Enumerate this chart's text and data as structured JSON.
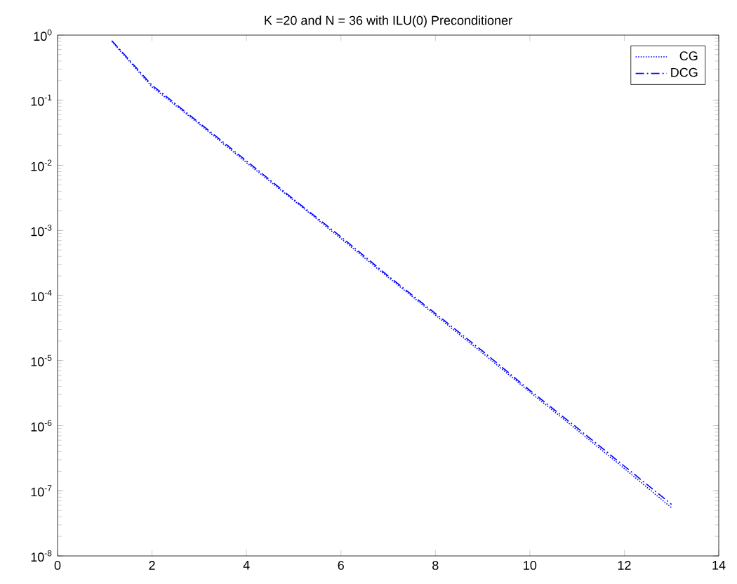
{
  "chart_data": {
    "type": "line",
    "title": "K =20 and N = 36 with ILU(0) Preconditioner",
    "log": "y",
    "legend": "top right",
    "grid": false,
    "marker": "none",
    "x": [
      1.15,
      2,
      3,
      4,
      5,
      6,
      7,
      8,
      9,
      10,
      11,
      12,
      13
    ],
    "series": [
      {
        "name": "CG",
        "color": "#0000ff",
        "line_style": "dotted",
        "values": [
          0.8,
          0.16,
          0.043,
          0.011,
          0.0029,
          0.00075,
          0.00019,
          5e-05,
          1.3e-05,
          3.3e-06,
          8.6e-07,
          2.2e-07,
          5.5e-08
        ]
      },
      {
        "name": "DCG",
        "color": "#0000ff",
        "line_style": "dashdot",
        "values": [
          0.82,
          0.17,
          0.045,
          0.0117,
          0.003,
          0.0008,
          0.0002,
          5.3e-05,
          1.4e-05,
          3.5e-06,
          9.3e-07,
          2.4e-07,
          6.2e-08
        ]
      }
    ],
    "xlim": [
      0,
      14
    ],
    "ylim": [
      1e-08,
      1
    ],
    "xticks": [
      0,
      2,
      4,
      6,
      8,
      10,
      12,
      14
    ],
    "yticks": [
      {
        "value": 1e-08,
        "label": "10$^{-8}$"
      },
      {
        "value": 1e-07,
        "label": "10$^{-7}$"
      },
      {
        "value": 1e-06,
        "label": "10$^{-6}$"
      },
      {
        "value": 1e-05,
        "label": "10$^{-5}$"
      },
      {
        "value": 0.0001,
        "label": "10$^{-4}$"
      },
      {
        "value": 0.001,
        "label": "10$^{-3}$"
      },
      {
        "value": 0.01,
        "label": "10$^{-2}$"
      },
      {
        "value": 0.1,
        "label": "10$^{-1}$"
      },
      {
        "value": 1,
        "label": "10$^{0}$"
      }
    ]
  }
}
